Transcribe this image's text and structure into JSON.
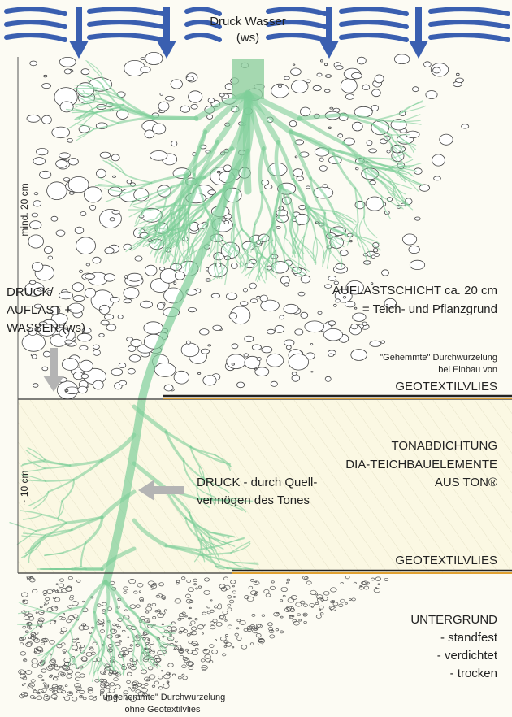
{
  "top_label": {
    "lines": [
      "Druck Wasser",
      "(ws)"
    ]
  },
  "depth_upper": {
    "text": "mind. 20 cm"
  },
  "load_label": {
    "lines": [
      "DRUCK/",
      "AUFLAST +",
      "WASSER (ws)"
    ]
  },
  "load_layer": {
    "lines": [
      "AUFLASTSCHICHT ca. 20 cm",
      "= Teich- und Pflanzgrund"
    ]
  },
  "inhibited_note": {
    "lines": [
      "\"Gehemmte\" Durchwurzelung",
      "bei Einbau von"
    ]
  },
  "geotextile_upper": {
    "text": "GEOTEXTILVLIES"
  },
  "clay_layer": {
    "lines": [
      "TONABDICHTUNG",
      "DIA-TEICHBAUELEMENTE",
      "AUS TON®"
    ]
  },
  "depth_lower": {
    "text": "~ 10 cm"
  },
  "clay_pressure": {
    "lines": [
      "DRUCK - durch Quell-",
      "vermögen des Tones"
    ]
  },
  "geotextile_lower": {
    "text": "GEOTEXTILVLIES"
  },
  "subsoil": {
    "lines": [
      "UNTERGRUND",
      "- standfest",
      "- verdichtet",
      "- trocken"
    ]
  },
  "uninhibited_note": {
    "lines": [
      "\"ungehemmte\" Durchwurzelung",
      "ohne Geotextilvlies"
    ]
  }
}
